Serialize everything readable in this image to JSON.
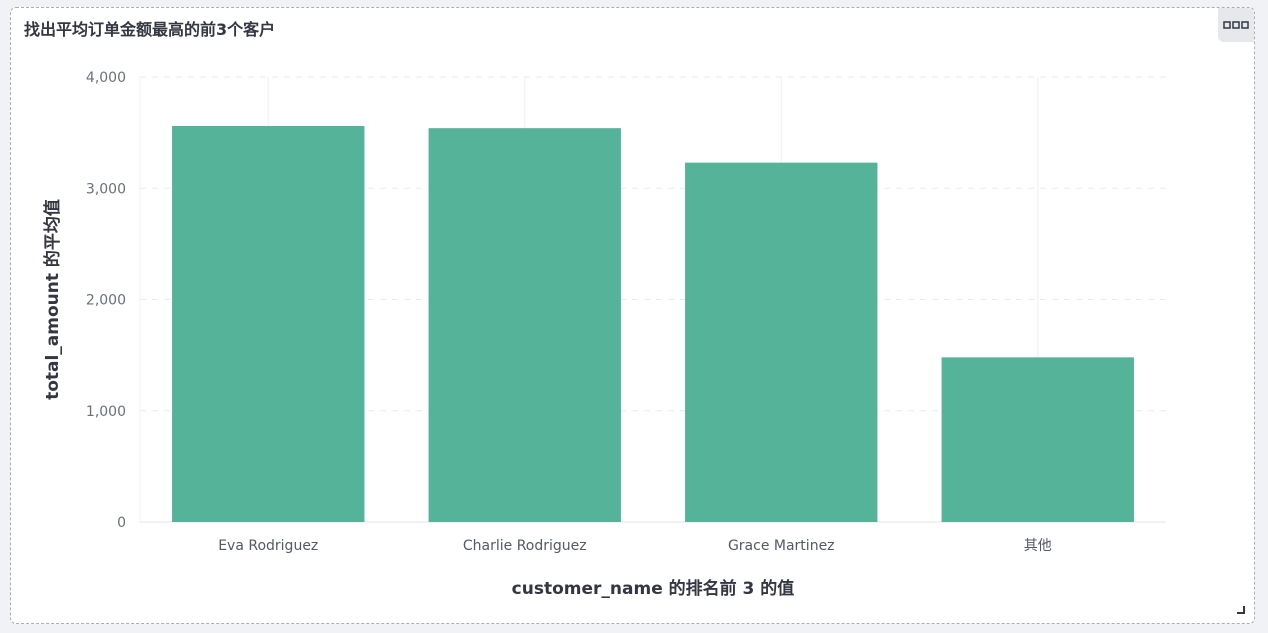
{
  "panel": {
    "title": "找出平均订单金额最高的前3个客户"
  },
  "menu": {
    "icon": "ellipsis-icon"
  },
  "chart_data": {
    "type": "bar",
    "categories": [
      "Eva Rodriguez",
      "Charlie Rodriguez",
      "Grace Martinez",
      "其他"
    ],
    "values": [
      3560,
      3540,
      3230,
      1480
    ],
    "xlabel": "customer_name 的排名前 3 的值",
    "ylabel": "total_amount 的平均值",
    "ylim": [
      0,
      4000
    ],
    "yticks": [
      0,
      1000,
      2000,
      3000,
      4000
    ],
    "ytick_labels": [
      "0",
      "1,000",
      "2,000",
      "3,000",
      "4,000"
    ],
    "bar_color": "#54b399",
    "grid": true
  }
}
